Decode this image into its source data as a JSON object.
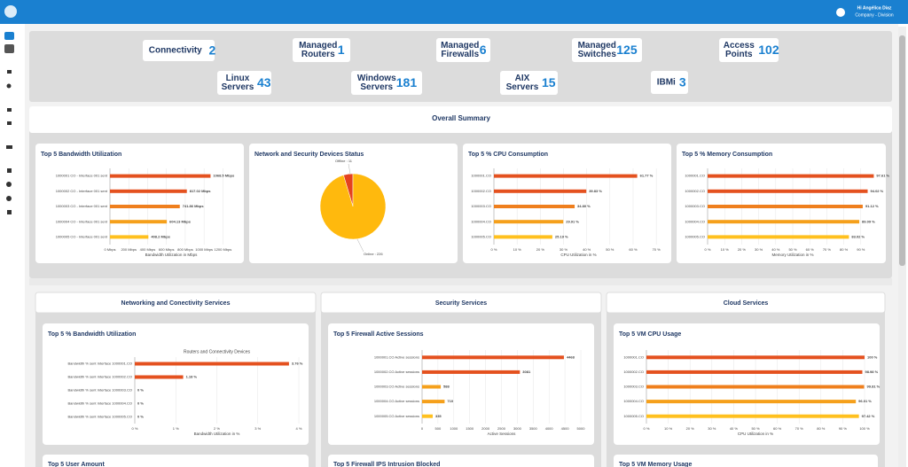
{
  "header": {
    "user": "Hi Angélica Díaz",
    "org": "Company - Division"
  },
  "kpis": [
    {
      "label": [
        "Connectivity"
      ],
      "count": 2
    },
    {
      "label": [
        "Managed",
        "Routers"
      ],
      "count": 1
    },
    {
      "label": [
        "Managed",
        "Firewalls"
      ],
      "count": 6
    },
    {
      "label": [
        "Managed",
        "Switches"
      ],
      "count": 125
    },
    {
      "label": [
        "Access",
        "Points"
      ],
      "count": 102
    },
    {
      "label": [
        "Linux",
        "Servers"
      ],
      "count": 43
    },
    {
      "label": [
        "Windows",
        "Servers"
      ],
      "count": 181
    },
    {
      "label": [
        "AIX",
        "Servers"
      ],
      "count": 15
    },
    {
      "label": [
        "IBMi"
      ],
      "count": 3
    }
  ],
  "summary": {
    "title": "Overall Summary"
  },
  "sections": [
    {
      "title": "Networking and Conectivity Services",
      "more": "Top 5 User Amount"
    },
    {
      "title": "Security Services",
      "more": "Top 5 Firewall IPS Intrusion Blocked"
    },
    {
      "title": "Cloud Services",
      "more": "Top 5 VM Memory Usage"
    }
  ],
  "chart_data": [
    {
      "type": "hbar",
      "title": "Top 5 Bandwidth Utilization",
      "categories": [
        "1000001 CO - Interface 001 sent",
        "1000002 CO - Interface 001 sent",
        "1000003 CO - Interface 001 sent",
        "1000004 CO - Interface 001 sent",
        "1000005 CO - Interface 001 sent"
      ],
      "values": [
        1068.5,
        817.02,
        741.86,
        604.13,
        408.2
      ],
      "value_labels": [
        "1068.5 Mbps",
        "817.02 Mbps",
        "741.86 Mbps",
        "604.13 Mbps",
        "408.2 Mbps"
      ],
      "colors": [
        "#e4511f",
        "#e4511f",
        "#ef7f1d",
        "#f5a01b",
        "#ffc01e"
      ],
      "xlim": [
        0,
        1300
      ],
      "xticks": [
        {
          "value": 0,
          "label": "0 Mbps"
        },
        {
          "value": 200,
          "label": "200 Mbps"
        },
        {
          "value": 400,
          "label": "400 Mbps"
        },
        {
          "value": 600,
          "label": "600 Mbps"
        },
        {
          "value": 800,
          "label": "800 Mbps"
        },
        {
          "value": 1000,
          "label": "1000 Mbps"
        },
        {
          "value": 1200,
          "label": "1200 Mbps"
        }
      ],
      "xlabel": "Bandwidth Utilization in Mbps",
      "grid": true
    },
    {
      "type": "pie",
      "title": "Network and Security Devices Status",
      "categories": [
        "Offline",
        "Online"
      ],
      "values": [
        11,
        226
      ],
      "value_labels": [
        "Offline : 11",
        "Online : 226"
      ],
      "colors": [
        "#e4421f",
        "#ffb90d"
      ]
    },
    {
      "type": "hbar",
      "title": "Top 5 % CPU Consumption",
      "categories": [
        "1000001.CO",
        "1000002.CO",
        "1000003.CO",
        "1000004.CO",
        "1000005.CO"
      ],
      "values": [
        61.77,
        39.83,
        34.8,
        29.91,
        25.19
      ],
      "value_labels": [
        "61.77 %",
        "39.83 %",
        "34.80 %",
        "29.91 %",
        "25.19 %"
      ],
      "colors": [
        "#e4511f",
        "#e4511f",
        "#ef7f1d",
        "#f5a01b",
        "#ffc01e"
      ],
      "xlim": [
        0,
        73
      ],
      "xticks": [
        {
          "value": 0,
          "label": "0 %"
        },
        {
          "value": 10,
          "label": "10 %"
        },
        {
          "value": 20,
          "label": "20 %"
        },
        {
          "value": 30,
          "label": "30 %"
        },
        {
          "value": 40,
          "label": "40 %"
        },
        {
          "value": 50,
          "label": "50 %"
        },
        {
          "value": 60,
          "label": "60 %"
        },
        {
          "value": 70,
          "label": "70 %"
        }
      ],
      "xlabel": "CPU Utilization in %",
      "grid": true
    },
    {
      "type": "hbar",
      "title": "Top 5 % Memory Consumption",
      "categories": [
        "1000001.CO",
        "1000002.CO",
        "1000003.CO",
        "1000004.CO",
        "1000005.CO"
      ],
      "values": [
        97.61,
        94.02,
        91.12,
        89.09,
        83.02
      ],
      "value_labels": [
        "97.61 %",
        "94.02 %",
        "91.12 %",
        "89.09 %",
        "83.02 %"
      ],
      "colors": [
        "#e4511f",
        "#e4511f",
        "#ef7f1d",
        "#f5a01b",
        "#ffc01e"
      ],
      "xlim": [
        0,
        100
      ],
      "xticks": [
        {
          "value": 0,
          "label": "0 %"
        },
        {
          "value": 10,
          "label": "10 %"
        },
        {
          "value": 20,
          "label": "20 %"
        },
        {
          "value": 30,
          "label": "30 %"
        },
        {
          "value": 40,
          "label": "40 %"
        },
        {
          "value": 50,
          "label": "50 %"
        },
        {
          "value": 60,
          "label": "60 %"
        },
        {
          "value": 70,
          "label": "70 %"
        },
        {
          "value": 80,
          "label": "80 %"
        },
        {
          "value": 90,
          "label": "90 %"
        }
      ],
      "xlabel": "Memory Utilization in %",
      "grid": true
    },
    {
      "type": "hbar",
      "title": "Top 5 % Bandwidth Utilization",
      "subtitle": "Routers and Connectivity Devices",
      "categories": [
        "Bandwidth % sent Interface 1000001.CO",
        "Bandwidth % sent Interface 1000002.CO",
        "Bandwidth % sent Interface 1000003.CO",
        "Bandwidth % sent Interface 1000004.CO",
        "Bandwidth % sent Interface 1000005.CO"
      ],
      "values": [
        3.76,
        1.18,
        0,
        0,
        0
      ],
      "value_labels": [
        "3.76 %",
        "1.18 %",
        "0 %",
        "0 %",
        "0 %"
      ],
      "colors": [
        "#e4511f",
        "#e4511f",
        "#ef7f1d",
        "#f5a01b",
        "#ffc01e"
      ],
      "xlim": [
        0,
        4
      ],
      "xticks": [
        {
          "value": 0,
          "label": "0 %"
        },
        {
          "value": 1,
          "label": "1 %"
        },
        {
          "value": 2,
          "label": "2 %"
        },
        {
          "value": 3,
          "label": "3 %"
        },
        {
          "value": 4,
          "label": "4 %"
        }
      ],
      "xlabel": "Bandwidth Utilization in %",
      "grid": true
    },
    {
      "type": "hbar",
      "title": "Top 5 Firewall Active Sessions",
      "categories": [
        "1000001.CO Active sessions",
        "1000002.CO Active sessions",
        "1000003.CO Active sessions",
        "1000004.CO Active sessions",
        "1000005.CO Active sessions"
      ],
      "values": [
        4468,
        3081,
        588,
        710,
        335
      ],
      "colors": [
        "#e4511f",
        "#e4511f",
        "#f5a01b",
        "#f5a01b",
        "#ffc01e"
      ],
      "xlim": [
        0,
        5000
      ],
      "xticks": [
        0,
        500,
        1000,
        1500,
        2000,
        2500,
        3000,
        3500,
        4000,
        4500,
        5000
      ],
      "xlabel": "Active Sessions",
      "grid": true
    },
    {
      "type": "hbar",
      "title": "Top 5 VM CPU Usage",
      "categories": [
        "1000001.CO",
        "1000002.CO",
        "1000003.CO",
        "1000004.CO",
        "1000005.CO"
      ],
      "values": [
        100,
        98.98,
        99.81,
        96.01,
        97.42
      ],
      "value_labels": [
        "100 %",
        "98.98 %",
        "99.81 %",
        "96.01 %",
        "97.42 %"
      ],
      "colors": [
        "#e4511f",
        "#e4511f",
        "#ef7f1d",
        "#f5a01b",
        "#ffc01e"
      ],
      "xlim": [
        0,
        100
      ],
      "xticks": [
        {
          "value": 0,
          "label": "0 %"
        },
        {
          "value": 10,
          "label": "10 %"
        },
        {
          "value": 20,
          "label": "20 %"
        },
        {
          "value": 30,
          "label": "30 %"
        },
        {
          "value": 40,
          "label": "40 %"
        },
        {
          "value": 50,
          "label": "50 %"
        },
        {
          "value": 60,
          "label": "60 %"
        },
        {
          "value": 70,
          "label": "70 %"
        },
        {
          "value": 80,
          "label": "80 %"
        },
        {
          "value": 90,
          "label": "90 %"
        },
        {
          "value": 100,
          "label": "100 %"
        }
      ],
      "xlabel": "CPU Utilization in %",
      "grid": true
    }
  ]
}
